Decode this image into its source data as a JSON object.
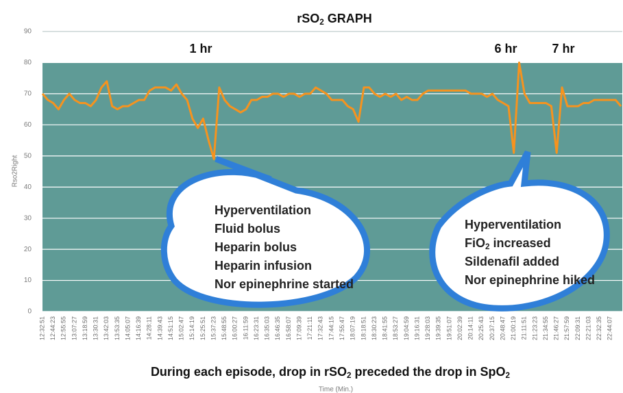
{
  "chart_data": {
    "type": "line",
    "title": [
      "rSO",
      "2",
      "  GRAPH"
    ],
    "ylabel": "Rso2Right",
    "xlabel": "Time (Min.)",
    "ylim": [
      0,
      90
    ],
    "yticks": [
      0,
      10,
      20,
      30,
      40,
      50,
      60,
      70,
      80,
      90
    ],
    "grid": true,
    "categories": [
      "12:32:51",
      null,
      "12:44:23",
      null,
      "12:55:55",
      null,
      "13:07:27",
      null,
      "13:18:59",
      null,
      "13:30:31",
      null,
      "13:42:03",
      null,
      "13:53:35",
      null,
      "14:05:07",
      null,
      "14:16:39",
      null,
      "14:28:11",
      null,
      "14:39:43",
      null,
      "14:51:15",
      null,
      "15:02:47",
      null,
      "15:14:19",
      null,
      "15:25:51",
      null,
      "15:37:23",
      null,
      "15:48:55",
      null,
      "16:00:27",
      null,
      "16:11:59",
      null,
      "16:23:31",
      null,
      "16:35:03",
      null,
      "16:46:35",
      null,
      "16:58:07",
      null,
      "17:09:39",
      null,
      "17:21:11",
      null,
      "17:32:43",
      null,
      "17:44:15",
      null,
      "17:55:47",
      null,
      "18:07:19",
      null,
      "18:18:51",
      null,
      "18:30:23",
      null,
      "18:41:55",
      null,
      "18:53:27",
      null,
      "19:04:59",
      null,
      "19:16:31",
      null,
      "19:28:03",
      null,
      "19:39:35",
      null,
      "19:51:07",
      null,
      "20:02:39",
      null,
      "20:14:11",
      null,
      "20:25:43",
      null,
      "20:37:15",
      null,
      "20:48:47",
      null,
      "21:00:19",
      null,
      "21:11:51",
      null,
      "21:23:23",
      null,
      "21:34:55",
      null,
      "21:46:27",
      null,
      "21:57:59",
      null,
      "22:09:31",
      null,
      "22:21:03",
      null,
      "22:32:35",
      null,
      "22:44:07",
      null,
      null
    ],
    "color": "#f7931e",
    "values": [
      70,
      68,
      67,
      65,
      68,
      70,
      68,
      67,
      67,
      66,
      68,
      72,
      74,
      66,
      65,
      66,
      66,
      67,
      68,
      68,
      71,
      72,
      72,
      72,
      71,
      73,
      70,
      68,
      62,
      59,
      62,
      55,
      49,
      72,
      68,
      66,
      65,
      64,
      65,
      68,
      68,
      69,
      69,
      70,
      70,
      69,
      70,
      70,
      69,
      70,
      70,
      72,
      71,
      70,
      68,
      68,
      68,
      66,
      65,
      61,
      72,
      72,
      70,
      69,
      70,
      69,
      70,
      68,
      69,
      68,
      68,
      70,
      71,
      71,
      71,
      71,
      71,
      71,
      71,
      71,
      70,
      70,
      70,
      69,
      70,
      68,
      67,
      66,
      51,
      80,
      70,
      67,
      67,
      67,
      67,
      66,
      51,
      72,
      66,
      66,
      66,
      67,
      67,
      68,
      68,
      68,
      68,
      68,
      66
    ],
    "annotations": [
      "1 hr",
      "6 hr",
      "7 hr"
    ],
    "callouts": [
      [
        [
          "Hyperventilation"
        ],
        [
          "Fluid  bolus"
        ],
        [
          "Heparin bolus"
        ],
        [
          "Heparin infusion"
        ],
        [
          "Nor epinephrine started"
        ]
      ],
      [
        [
          "Hyperventilation"
        ],
        [
          "FiO",
          "2",
          " increased"
        ],
        [
          "Sildenafil added"
        ],
        [
          "Nor epinephrine hiked"
        ]
      ]
    ],
    "footer": [
      "During each episode, drop in rSO",
      "2",
      " preceded the drop in SpO",
      "2"
    ]
  }
}
